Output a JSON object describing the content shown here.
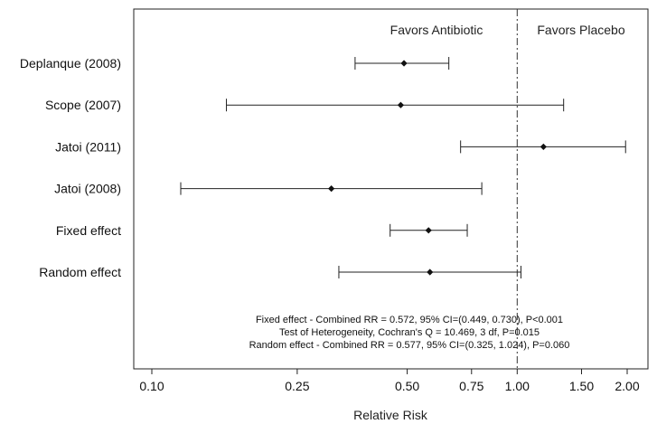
{
  "chart_data": {
    "type": "forest",
    "xlabel": "Relative Risk",
    "x_scale": "log",
    "xlim": [
      0.09,
      2.2
    ],
    "x_ticks": [
      0.1,
      0.25,
      0.5,
      0.75,
      1.0,
      1.5,
      2.0
    ],
    "x_tick_labels": [
      "0.10",
      "0.25",
      "0.50",
      "0.75",
      "1.00",
      "1.50",
      "2.00"
    ],
    "reference_line": 1.0,
    "favor_labels": {
      "left": "Favors Antibiotic",
      "right": "Favors Placebo"
    },
    "studies": [
      {
        "label": "Deplanque (2008)",
        "rr": 0.49,
        "ci": [
          0.36,
          0.65
        ]
      },
      {
        "label": "Scope (2007)",
        "rr": 0.48,
        "ci": [
          0.16,
          1.34
        ]
      },
      {
        "label": "Jatoi (2011)",
        "rr": 1.18,
        "ci": [
          0.7,
          1.98
        ]
      },
      {
        "label": "Jatoi (2008)",
        "rr": 0.31,
        "ci": [
          0.12,
          0.8
        ]
      },
      {
        "label": "Fixed effect",
        "rr": 0.572,
        "ci": [
          0.449,
          0.73
        ]
      },
      {
        "label": "Random effect",
        "rr": 0.577,
        "ci": [
          0.325,
          1.024
        ]
      }
    ],
    "notes": [
      "Fixed effect - Combined RR = 0.572, 95% CI=(0.449, 0.730), P<0.001",
      "Test of Heterogeneity, Cochran's Q = 10.469, 3 df, P=0.015",
      "Random effect - Combined RR = 0.577, 95% CI=(0.325, 1.024), P=0.060"
    ]
  }
}
